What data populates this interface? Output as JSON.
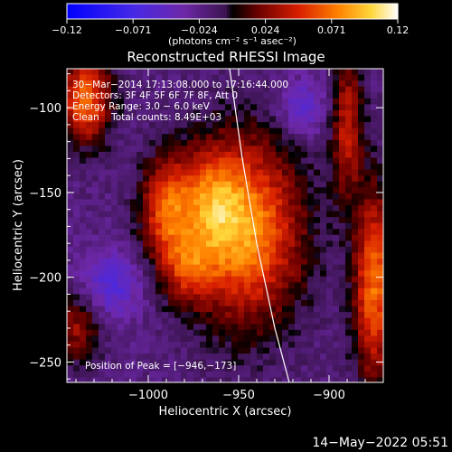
{
  "chart_data": {
    "type": "heatmap",
    "title": "Reconstructed RHESSI Image",
    "xlabel": "Heliocentric X (arcsec)",
    "ylabel": "Heliocentric Y (arcsec)",
    "xlim": [
      -1045,
      -870
    ],
    "ylim": [
      -262,
      -77
    ],
    "x_ticks": [
      {
        "value": -1000,
        "label": "−1000"
      },
      {
        "value": -950,
        "label": "−950"
      },
      {
        "value": -900,
        "label": "−900"
      }
    ],
    "y_ticks": [
      {
        "value": -100,
        "label": "−100"
      },
      {
        "value": -150,
        "label": "−150"
      },
      {
        "value": -200,
        "label": "−200"
      },
      {
        "value": -250,
        "label": "−250"
      }
    ],
    "colorbar": {
      "range": [
        -0.12,
        0.12
      ],
      "tick_labels": [
        "−0.12",
        "−0.071",
        "−0.024",
        "0.024",
        "0.071",
        "0.12"
      ],
      "unit_label": "(photons cm⁻² s⁻¹ asec⁻²)"
    },
    "annotations": [
      "30−Mar−2014 17:13:08.000 to 17:16:44.000",
      "Detectors: 3F 4F 5F 6F 7F 8F, Att 0",
      "Energy Range: 3.0 − 6.0 keV",
      "Clean    Total counts: 8.49E+03"
    ],
    "peak_label": "Position of Peak = [−946,−173]",
    "peak": {
      "x": -946,
      "y": -173,
      "value": 0.12
    },
    "limb_curve": [
      [
        -955,
        -77
      ],
      [
        -948,
        -130
      ],
      [
        -940,
        -180
      ],
      [
        -930,
        -230
      ],
      [
        -922,
        -262
      ]
    ],
    "sources": [
      {
        "x": -946,
        "y": -173,
        "amp": 0.1,
        "sx": 22,
        "sy": 38
      },
      {
        "x": -965,
        "y": -155,
        "amp": 0.05,
        "sx": 12,
        "sy": 22
      },
      {
        "x": -990,
        "y": -160,
        "amp": 0.075,
        "sx": 10,
        "sy": 22
      },
      {
        "x": -978,
        "y": -195,
        "amp": 0.05,
        "sx": 10,
        "sy": 14
      },
      {
        "x": -1035,
        "y": -95,
        "amp": 0.09,
        "sx": 10,
        "sy": 18
      },
      {
        "x": -875,
        "y": -205,
        "amp": 0.09,
        "sx": 8,
        "sy": 40
      },
      {
        "x": -890,
        "y": -110,
        "amp": 0.06,
        "sx": 6,
        "sy": 30
      },
      {
        "x": -1040,
        "y": -230,
        "amp": 0.05,
        "sx": 10,
        "sy": 14
      }
    ],
    "negative_regions": [
      {
        "x": -1020,
        "y": -205,
        "amp": -0.04,
        "sx": 12,
        "sy": 14
      },
      {
        "x": -915,
        "y": -100,
        "amp": -0.035,
        "sx": 10,
        "sy": 12
      }
    ],
    "background_level": -0.02
  },
  "footer": {
    "date": "14−May−2022 05:51"
  }
}
